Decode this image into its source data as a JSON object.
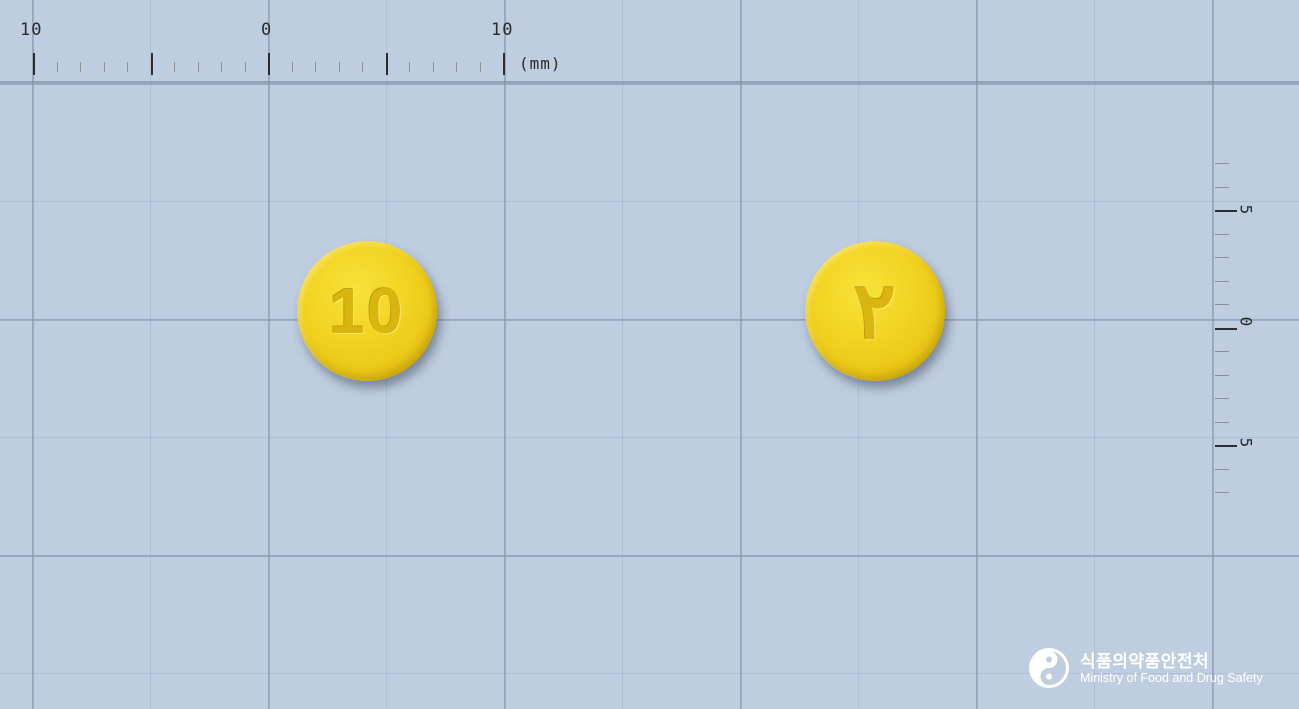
{
  "ruler_horizontal": {
    "labels": [
      "10",
      "0",
      "10"
    ],
    "unit": "(mm)"
  },
  "ruler_vertical": {
    "labels": [
      "5",
      "0",
      "5"
    ]
  },
  "pills": [
    {
      "imprint": "10",
      "color": "#f0d11f"
    },
    {
      "imprint": "٢",
      "color": "#f0d11f"
    }
  ],
  "logo": {
    "korean": "식품의약품안전처",
    "english": "Ministry of Food and Drug Safety"
  }
}
